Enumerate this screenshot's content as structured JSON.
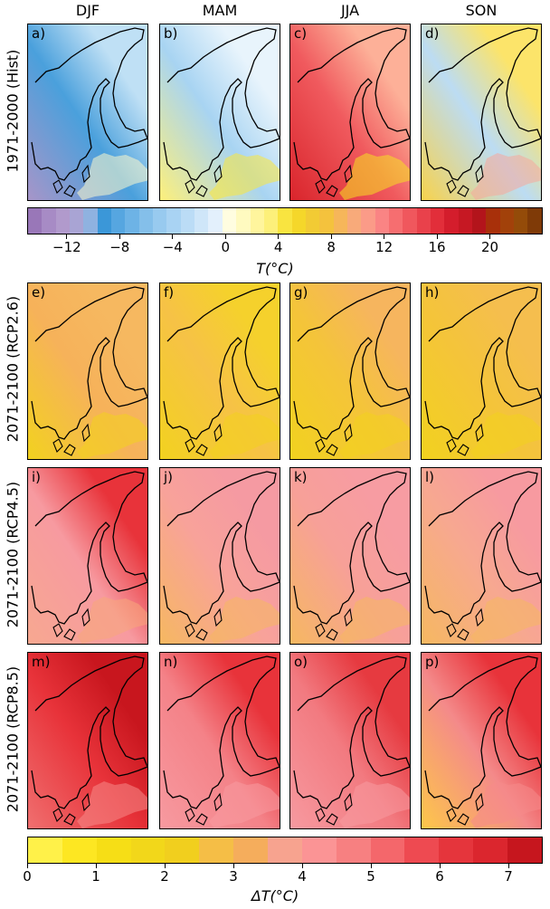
{
  "columns": [
    "DJF",
    "MAM",
    "JJA",
    "SON"
  ],
  "rows": [
    {
      "label": "1971-2000 (Hist)",
      "panels": [
        "a)",
        "b)",
        "c)",
        "d)"
      ],
      "fills": [
        [
          "#a895c8",
          "#4aa0dc",
          "#bfe0f5",
          "#fffacc"
        ],
        [
          "#fef07a",
          "#a8d4f2",
          "#e8f4fc",
          "#fbe83a"
        ],
        [
          "#d9242b",
          "#f05a5e",
          "#fdb098",
          "#f5e120"
        ],
        [
          "#f8d24a",
          "#bcdcf3",
          "#fce46a",
          "#f7a89a"
        ]
      ]
    },
    {
      "label": "2071-2100 (RCP2.6)",
      "panels": [
        "e)",
        "f)",
        "g)",
        "h)"
      ],
      "fills": [
        [
          "#f2d21e",
          "#f6b25a",
          "#f6b860",
          "#f2d21e"
        ],
        [
          "#f2d21e",
          "#f6c246",
          "#f5d12c",
          "#f2d21e"
        ],
        [
          "#f2d21e",
          "#f4c43a",
          "#f6b55e",
          "#f2d21e"
        ],
        [
          "#f2d21e",
          "#f4c43a",
          "#f5be4e",
          "#f2d21e"
        ]
      ]
    },
    {
      "label": "2071-2100 (RCP4.5)",
      "panels": [
        "i)",
        "j)",
        "k)",
        "l)"
      ],
      "fills": [
        [
          "#f7a890",
          "#f79aa0",
          "#e8333a",
          "#f7a87a"
        ],
        [
          "#f6b860",
          "#f8a29a",
          "#f59aa2",
          "#f6b860"
        ],
        [
          "#f6b860",
          "#f7a098",
          "#f79ca2",
          "#f6b860"
        ],
        [
          "#f6b860",
          "#f7a890",
          "#f79aa0",
          "#f6b860"
        ]
      ]
    },
    {
      "label": "2071-2100 (RCP8.5)",
      "panels": [
        "m)",
        "n)",
        "o)",
        "p)"
      ],
      "fills": [
        [
          "#f07070",
          "#e8333a",
          "#c8161e",
          "#f58a88"
        ],
        [
          "#f79aa0",
          "#f48288",
          "#e8333a",
          "#f79aa0"
        ],
        [
          "#f79aa0",
          "#f27a80",
          "#e63a40",
          "#f79aa0"
        ],
        [
          "#fdc848",
          "#f48a8a",
          "#e8333a",
          "#f58a8a"
        ]
      ]
    }
  ],
  "colorbar_hist": {
    "colors": [
      "#9977b8",
      "#a78bc5",
      "#b19acc",
      "#a9a4d4",
      "#8fb2e0",
      "#3b97d8",
      "#56a6e0",
      "#6db3e6",
      "#84bfea",
      "#98caef",
      "#a9d3f3",
      "#bbdcf6",
      "#cfe6f9",
      "#e3f0fc",
      "#fffde0",
      "#fffac0",
      "#fff59d",
      "#fdf07a",
      "#f9e440",
      "#f5d72a",
      "#f2cb34",
      "#f4c23d",
      "#f6b65a",
      "#f8aa7a",
      "#fb9b88",
      "#fa8484",
      "#f66e70",
      "#f0575d",
      "#e9414b",
      "#e22e3a",
      "#d41d2c",
      "#c61823",
      "#b3141b",
      "#a8300a",
      "#a2410a",
      "#944b09",
      "#7f3a07"
    ],
    "ticks": [
      -12,
      -8,
      -4,
      0,
      4,
      8,
      12,
      16,
      20
    ],
    "vmin": -15,
    "vmax": 24,
    "label": "T(°C)"
  },
  "colorbar_delta": {
    "colors": [
      "#fff149",
      "#fde722",
      "#f6de16",
      "#f2d71a",
      "#f1cf1e",
      "#f5be46",
      "#f5ad5c",
      "#f7a38f",
      "#fb9495",
      "#f78081",
      "#f4676b",
      "#ee4a51",
      "#e5353c",
      "#db262e",
      "#c6161e"
    ],
    "ticks": [
      0,
      1,
      2,
      3,
      4,
      5,
      6,
      7
    ],
    "vmin": 0,
    "vmax": 7.5,
    "label": "ΔT(°C)"
  }
}
